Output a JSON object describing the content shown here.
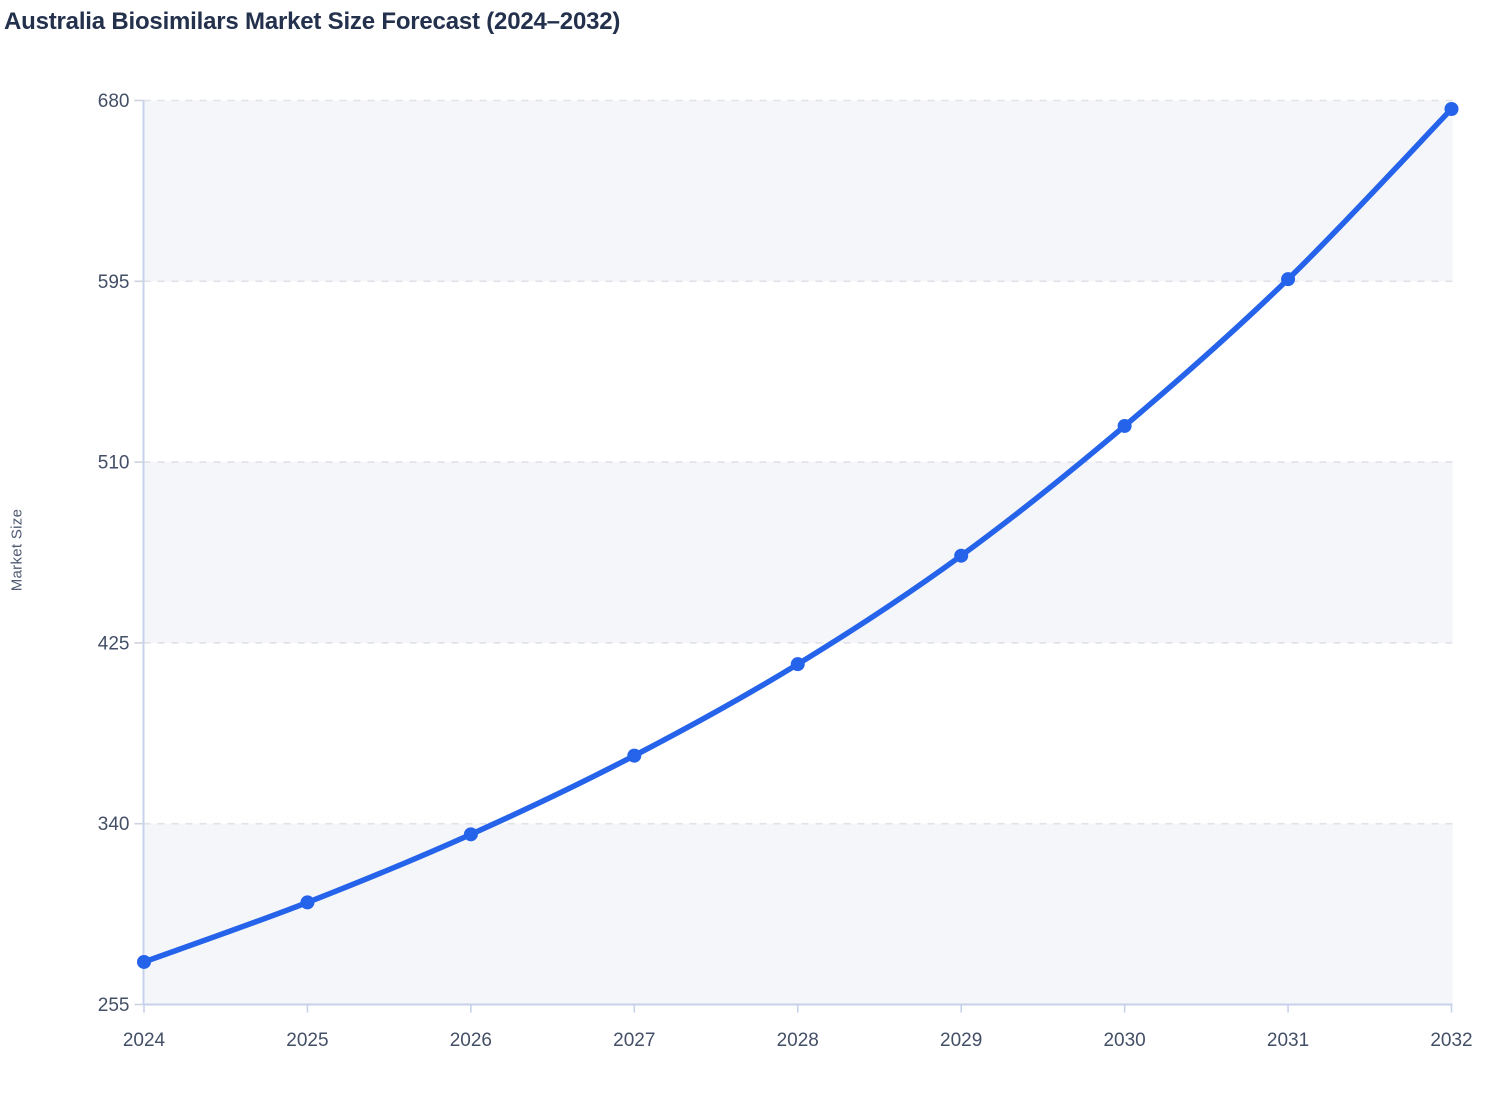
{
  "chart_data": {
    "type": "line",
    "title": "Australia Biosimilars Market Size Forecast (2024–2032)",
    "ylabel": "Market Size",
    "xlabel": "",
    "categories": [
      "2024",
      "2025",
      "2026",
      "2027",
      "2028",
      "2029",
      "2030",
      "2031",
      "2032"
    ],
    "series": [
      {
        "name": "Market Size",
        "values": [
          275,
          303,
          335,
          372,
          415,
          466,
          527,
          596,
          676
        ]
      }
    ],
    "yticks": [
      255,
      340,
      425,
      510,
      595,
      680
    ],
    "ylim": [
      255,
      680
    ],
    "grid": "horizontal-dashed",
    "legend": "none",
    "band_fill": "alternating",
    "colors": {
      "line": "#2563eb",
      "marker": "#2563eb",
      "band": "#f5f6f9",
      "grid": "#dfe2e8",
      "axis": "#c7d1eb",
      "tick": "#ccd2df",
      "tick_text": "#434f66",
      "title_text": "#24314d",
      "axis_label_text": "#4e5a70"
    }
  }
}
